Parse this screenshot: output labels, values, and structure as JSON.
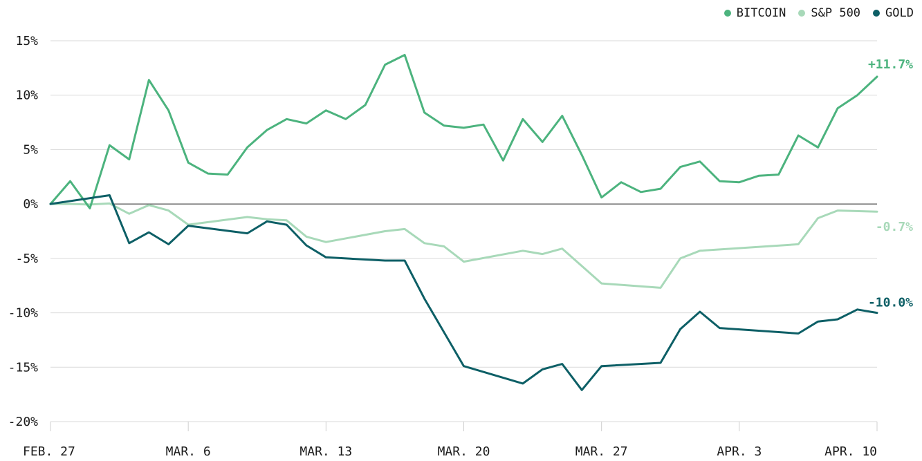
{
  "chart_data": {
    "type": "line",
    "title": "",
    "xlabel": "",
    "ylabel": "",
    "ylim": [
      -20,
      15
    ],
    "yticks": [
      "15%",
      "10%",
      "5%",
      "0%",
      "-5%",
      "-10%",
      "-15%",
      "-20%"
    ],
    "ytick_values": [
      15,
      10,
      5,
      0,
      -5,
      -10,
      -15,
      -20
    ],
    "xlim": [
      "2023-02-27",
      "2023-04-10"
    ],
    "xticks": [
      {
        "label": "FEB. 27",
        "date": "2023-02-27"
      },
      {
        "label": "MAR. 6",
        "date": "2023-03-06"
      },
      {
        "label": "MAR. 13",
        "date": "2023-03-13"
      },
      {
        "label": "MAR. 20",
        "date": "2023-03-20"
      },
      {
        "label": "MAR. 27",
        "date": "2023-03-27"
      },
      {
        "label": "APR. 3",
        "date": "2023-04-03"
      },
      {
        "label": "APR. 10",
        "date": "2023-04-10"
      }
    ],
    "legend": "top-right",
    "grid": true,
    "series": [
      {
        "name": "BITCOIN",
        "color": "#4cb37e",
        "end_label": "+11.7%",
        "points": [
          [
            "2023-02-27",
            0
          ],
          [
            "2023-02-28",
            2.1
          ],
          [
            "2023-03-01",
            -0.4
          ],
          [
            "2023-03-02",
            5.4
          ],
          [
            "2023-03-03",
            4.1
          ],
          [
            "2023-03-04",
            11.4
          ],
          [
            "2023-03-05",
            8.6
          ],
          [
            "2023-03-06",
            3.8
          ],
          [
            "2023-03-07",
            2.8
          ],
          [
            "2023-03-08",
            2.7
          ],
          [
            "2023-03-09",
            5.2
          ],
          [
            "2023-03-10",
            6.8
          ],
          [
            "2023-03-11",
            7.8
          ],
          [
            "2023-03-12",
            7.4
          ],
          [
            "2023-03-13",
            8.6
          ],
          [
            "2023-03-14",
            7.8
          ],
          [
            "2023-03-15",
            9.1
          ],
          [
            "2023-03-16",
            12.8
          ],
          [
            "2023-03-17",
            13.7
          ],
          [
            "2023-03-18",
            8.4
          ],
          [
            "2023-03-19",
            7.2
          ],
          [
            "2023-03-20",
            7.0
          ],
          [
            "2023-03-21",
            7.3
          ],
          [
            "2023-03-22",
            4.0
          ],
          [
            "2023-03-23",
            7.8
          ],
          [
            "2023-03-24",
            5.7
          ],
          [
            "2023-03-25",
            8.1
          ],
          [
            "2023-03-26",
            4.5
          ],
          [
            "2023-03-27",
            0.6
          ],
          [
            "2023-03-28",
            2.0
          ],
          [
            "2023-03-29",
            1.1
          ],
          [
            "2023-03-30",
            1.4
          ],
          [
            "2023-03-31",
            3.4
          ],
          [
            "2023-04-01",
            3.9
          ],
          [
            "2023-04-02",
            2.1
          ],
          [
            "2023-04-03",
            2.0
          ],
          [
            "2023-04-04",
            2.6
          ],
          [
            "2023-04-05",
            2.7
          ],
          [
            "2023-04-06",
            6.3
          ],
          [
            "2023-04-07",
            5.2
          ],
          [
            "2023-04-08",
            8.8
          ],
          [
            "2023-04-09",
            10.0
          ],
          [
            "2023-04-10",
            11.7
          ]
        ]
      },
      {
        "name": "S&P 500",
        "color": "#a8d9b9",
        "end_label": "-0.7%",
        "points": [
          [
            "2023-02-27",
            0
          ],
          [
            "2023-02-28",
            0
          ],
          [
            "2023-03-01",
            -0.05
          ],
          [
            "2023-03-02",
            0.05
          ],
          [
            "2023-03-03",
            -0.9
          ],
          [
            "2023-03-04",
            -0.1
          ],
          [
            "2023-03-05",
            -0.6
          ],
          [
            "2023-03-06",
            -1.9
          ],
          [
            "2023-03-09",
            -1.2
          ],
          [
            "2023-03-10",
            -1.4
          ],
          [
            "2023-03-11",
            -1.5
          ],
          [
            "2023-03-12",
            -3.0
          ],
          [
            "2023-03-13",
            -3.5
          ],
          [
            "2023-03-16",
            -2.5
          ],
          [
            "2023-03-17",
            -2.3
          ],
          [
            "2023-03-18",
            -3.6
          ],
          [
            "2023-03-19",
            -3.9
          ],
          [
            "2023-03-20",
            -5.3
          ],
          [
            "2023-03-23",
            -4.3
          ],
          [
            "2023-03-24",
            -4.6
          ],
          [
            "2023-03-25",
            -4.1
          ],
          [
            "2023-03-26",
            -5.7
          ],
          [
            "2023-03-27",
            -7.3
          ],
          [
            "2023-03-30",
            -7.7
          ],
          [
            "2023-03-31",
            -5.0
          ],
          [
            "2023-04-01",
            -4.3
          ],
          [
            "2023-04-06",
            -3.7
          ],
          [
            "2023-04-07",
            -1.3
          ],
          [
            "2023-04-08",
            -0.6
          ],
          [
            "2023-04-10",
            -0.7
          ]
        ]
      },
      {
        "name": "GOLD",
        "color": "#0d5f66",
        "end_label": "-10.0%",
        "points": [
          [
            "2023-02-27",
            0
          ],
          [
            "2023-03-02",
            0.8
          ],
          [
            "2023-03-03",
            -3.6
          ],
          [
            "2023-03-04",
            -2.6
          ],
          [
            "2023-03-05",
            -3.7
          ],
          [
            "2023-03-06",
            -2.0
          ],
          [
            "2023-03-09",
            -2.7
          ],
          [
            "2023-03-10",
            -1.6
          ],
          [
            "2023-03-11",
            -1.9
          ],
          [
            "2023-03-12",
            -3.8
          ],
          [
            "2023-03-13",
            -4.9
          ],
          [
            "2023-03-16",
            -5.2
          ],
          [
            "2023-03-17",
            -5.2
          ],
          [
            "2023-03-18",
            -8.7
          ],
          [
            "2023-03-20",
            -14.9
          ],
          [
            "2023-03-23",
            -16.5
          ],
          [
            "2023-03-24",
            -15.2
          ],
          [
            "2023-03-25",
            -14.7
          ],
          [
            "2023-03-26",
            -17.1
          ],
          [
            "2023-03-27",
            -14.9
          ],
          [
            "2023-03-30",
            -14.6
          ],
          [
            "2023-03-31",
            -11.5
          ],
          [
            "2023-04-01",
            -9.9
          ],
          [
            "2023-04-02",
            -11.4
          ],
          [
            "2023-04-06",
            -11.9
          ],
          [
            "2023-04-07",
            -10.8
          ],
          [
            "2023-04-08",
            -10.6
          ],
          [
            "2023-04-09",
            -9.7
          ],
          [
            "2023-04-10",
            -10.0
          ]
        ]
      }
    ]
  }
}
